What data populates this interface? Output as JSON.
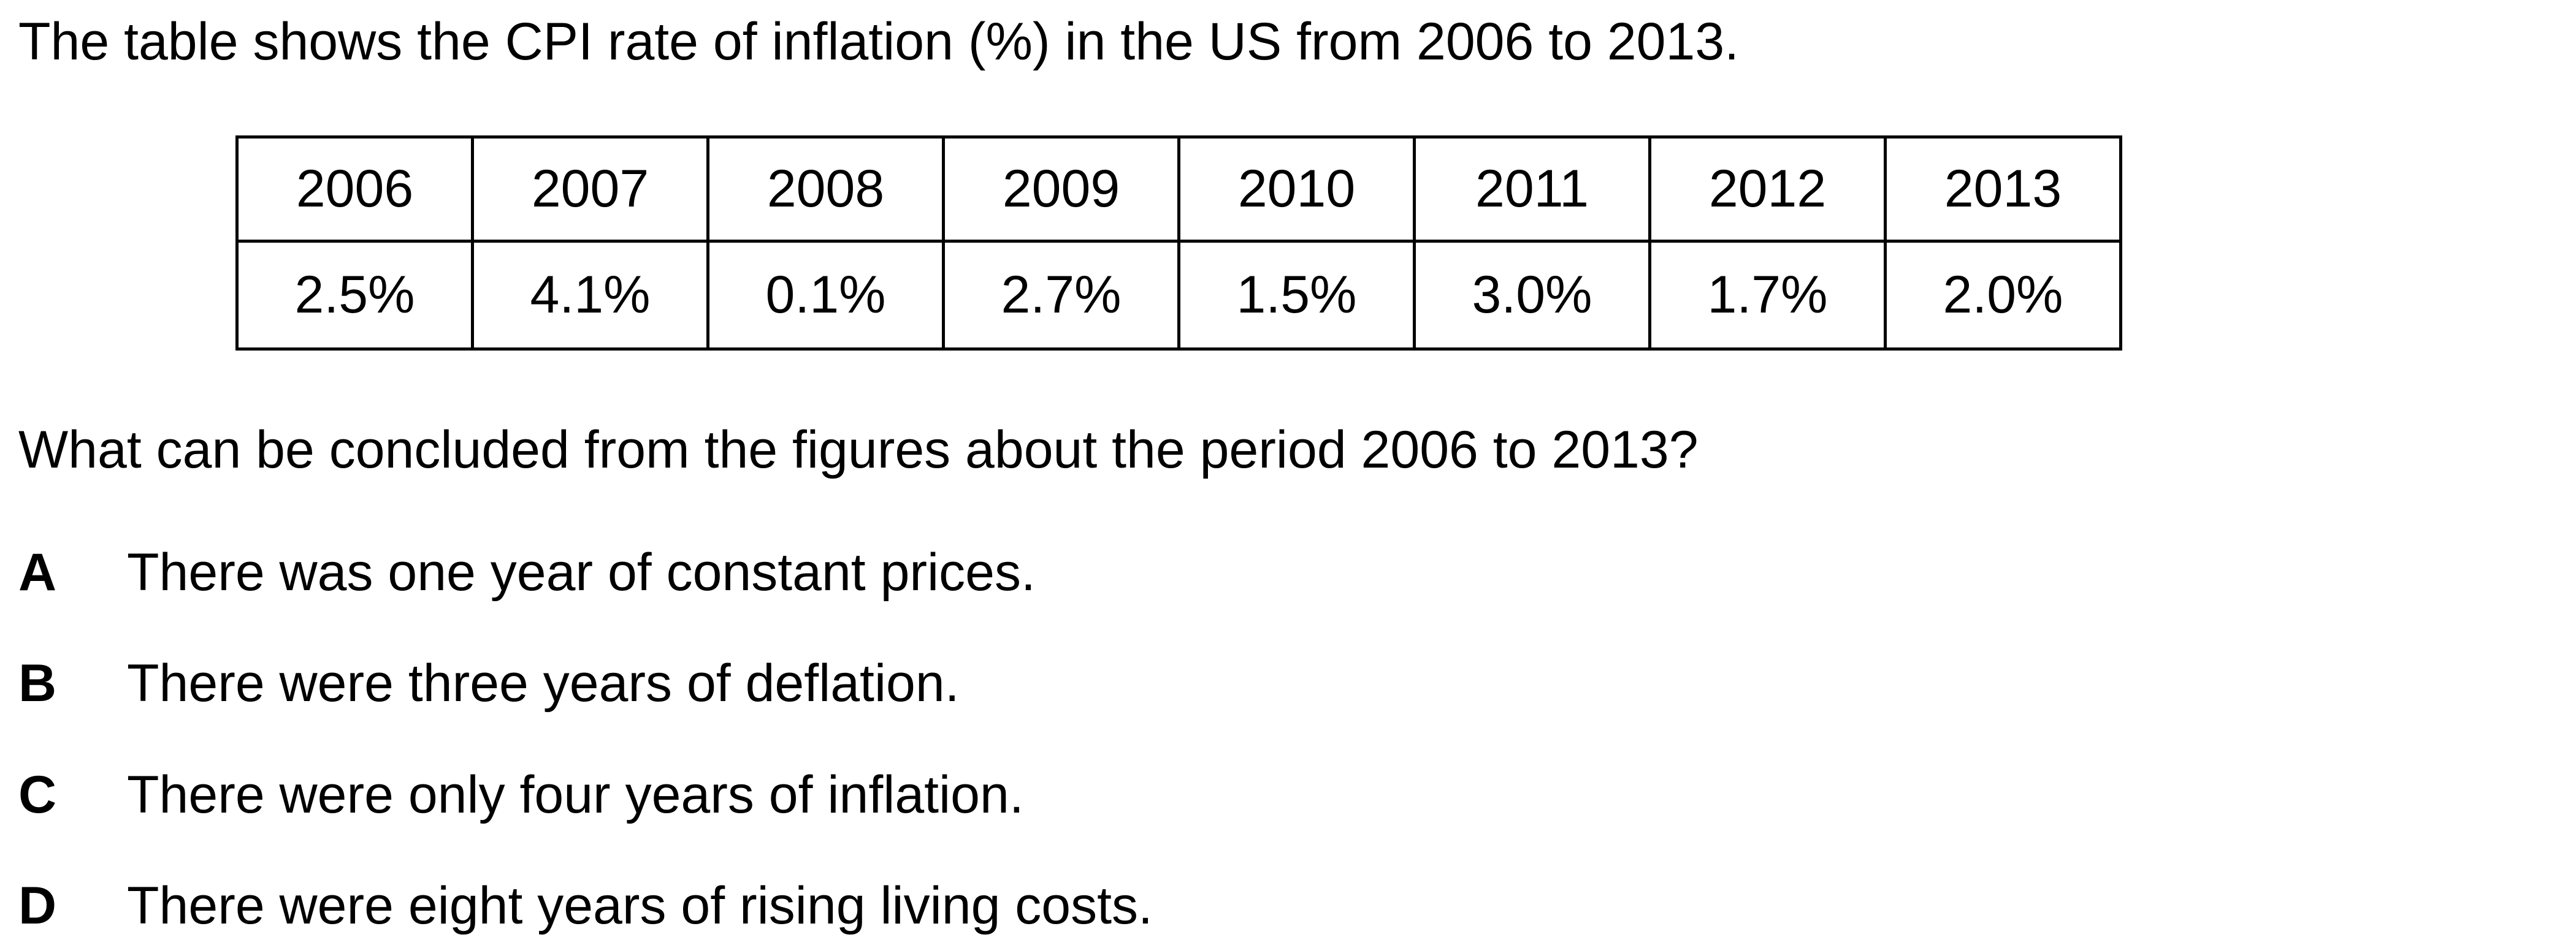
{
  "intro": "The table shows the CPI rate of inflation (%) in the US from 2006 to 2013.",
  "table": {
    "years": [
      "2006",
      "2007",
      "2008",
      "2009",
      "2010",
      "2011",
      "2012",
      "2013"
    ],
    "rates": [
      "2.5%",
      "4.1%",
      "0.1%",
      "2.7%",
      "1.5%",
      "3.0%",
      "1.7%",
      "2.0%"
    ]
  },
  "question": "What can be concluded from the figures about the period 2006 to 2013?",
  "options": [
    {
      "letter": "A",
      "text": "There was one year of constant prices."
    },
    {
      "letter": "B",
      "text": "There were three years of deflation."
    },
    {
      "letter": "C",
      "text": "There were only four years of inflation."
    },
    {
      "letter": "D",
      "text": "There were eight years of rising living costs."
    }
  ]
}
